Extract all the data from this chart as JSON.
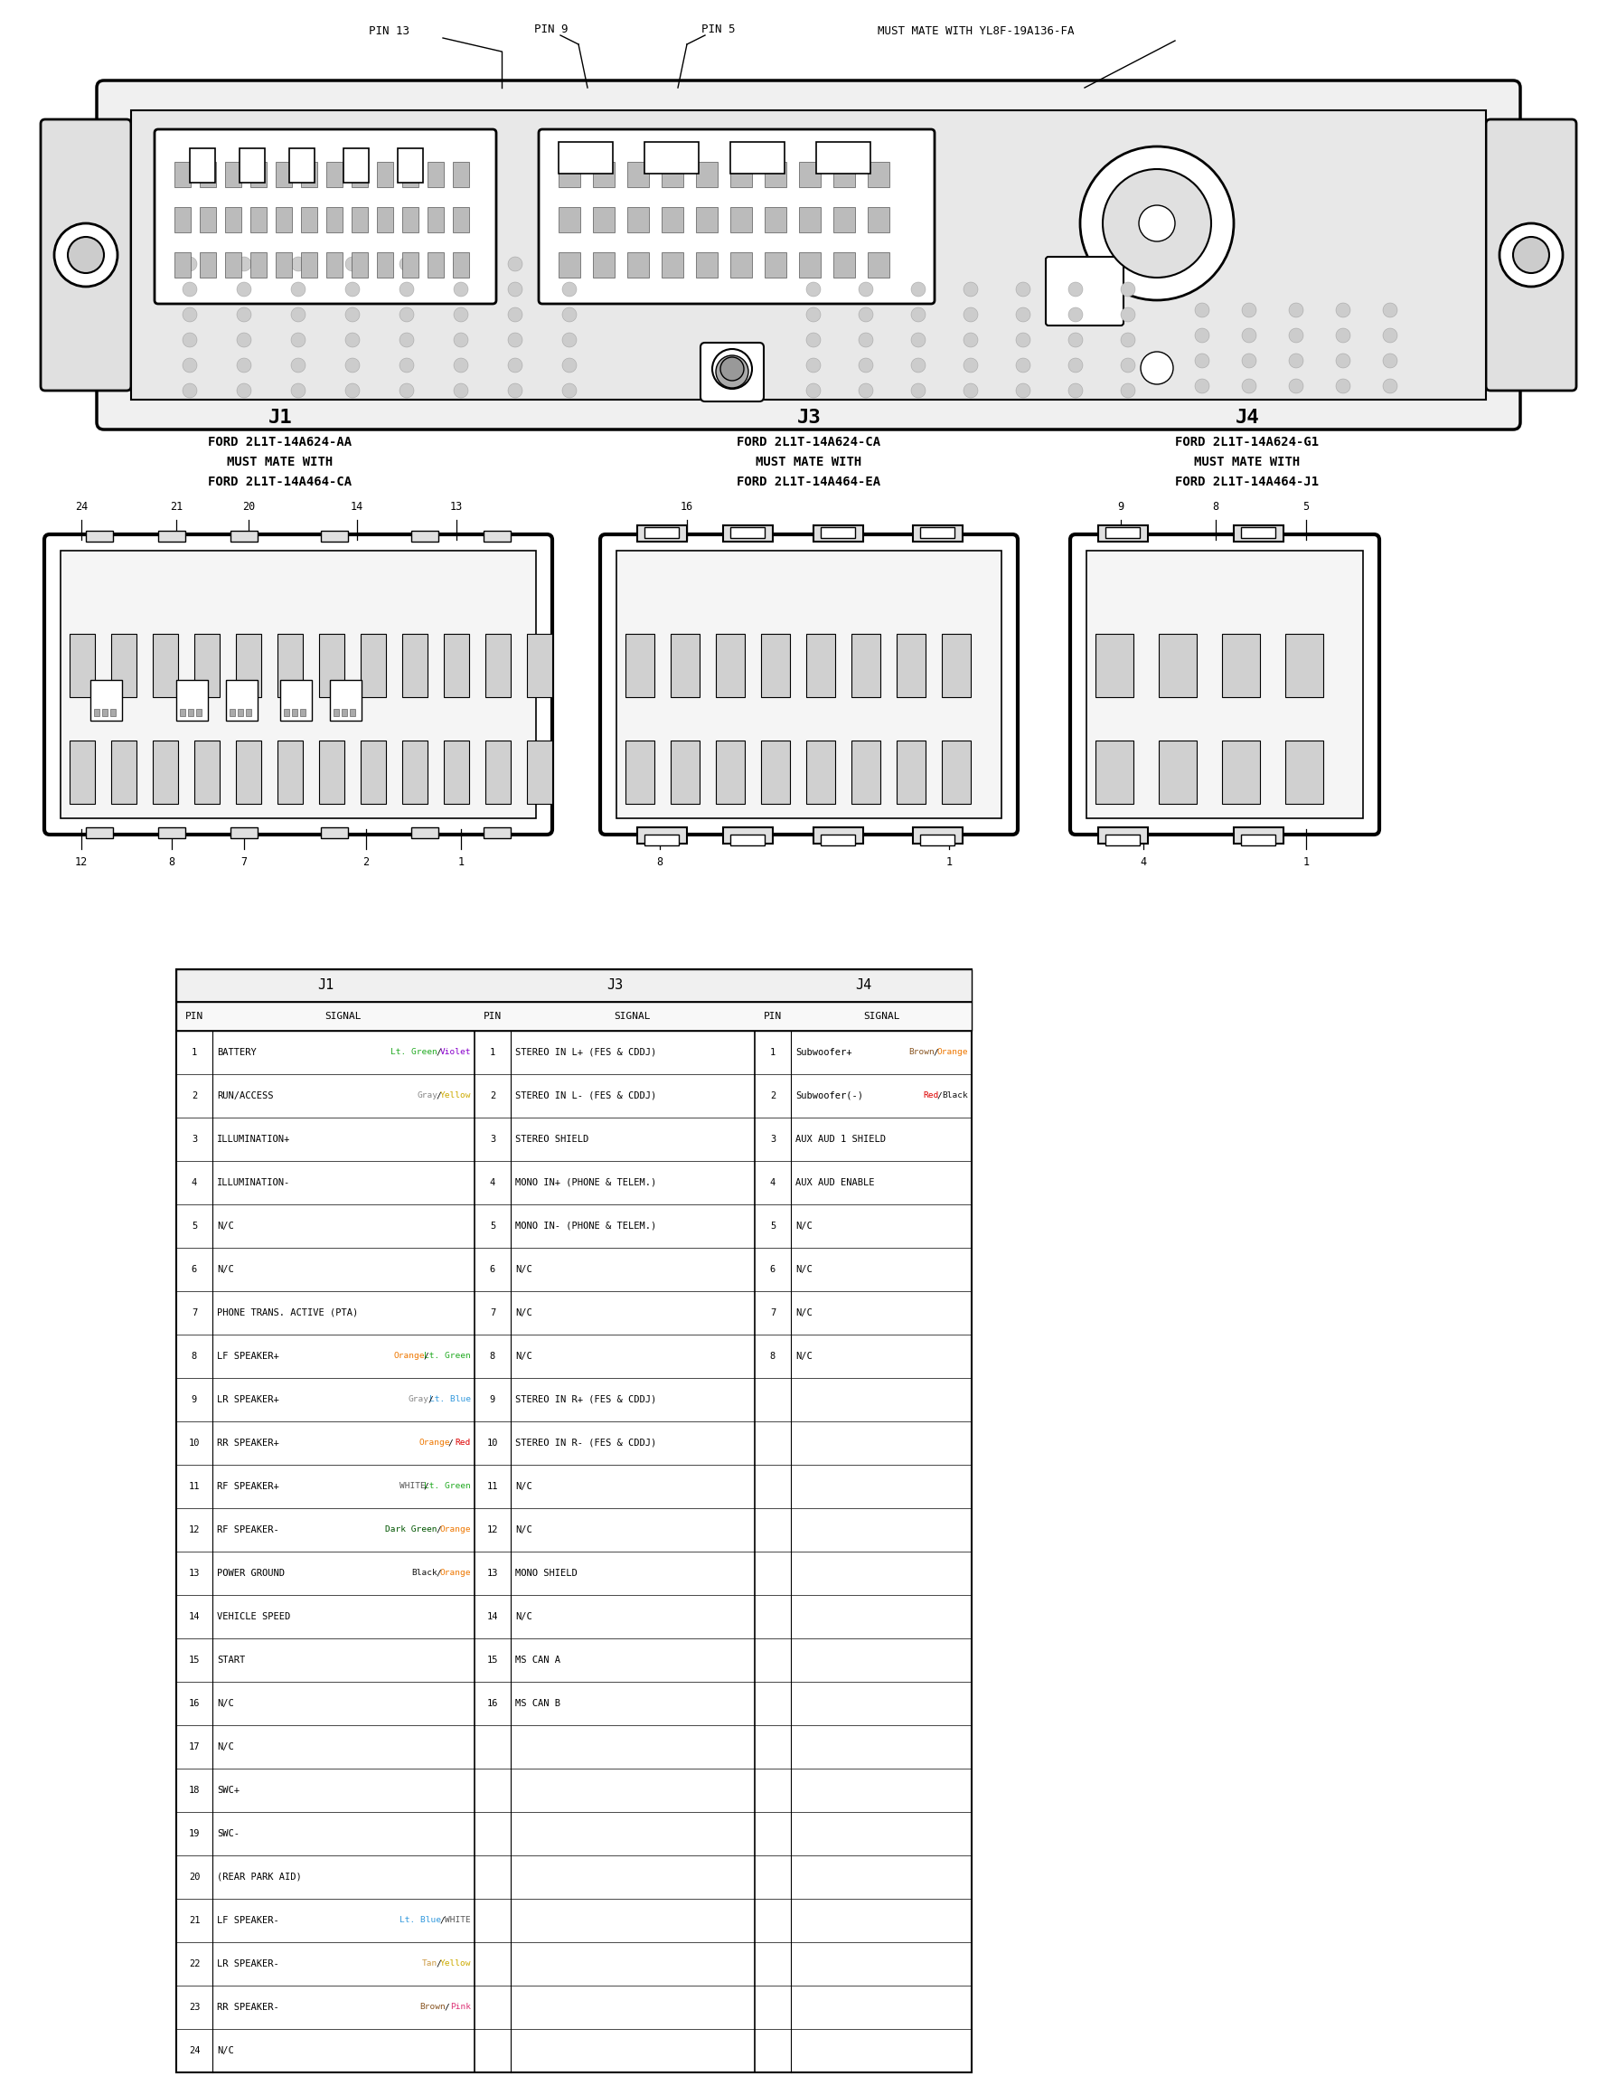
{
  "bg": "#ffffff",
  "j1_table": [
    [
      "1",
      "BATTERY",
      "Lt.Green",
      "Violet"
    ],
    [
      "2",
      "RUN/ACCESS",
      "Gray",
      "Yellow"
    ],
    [
      "3",
      "ILLUMINATION+",
      "",
      ""
    ],
    [
      "4",
      "ILLUMINATION-",
      "",
      ""
    ],
    [
      "5",
      "N/C",
      "",
      ""
    ],
    [
      "6",
      "N/C",
      "",
      ""
    ],
    [
      "7",
      "PHONE TRANS. ACTIVE (PTA)",
      "",
      ""
    ],
    [
      "8",
      "LF SPEAKER+",
      "Orange",
      "Lt.Green"
    ],
    [
      "9",
      "LR SPEAKER+",
      "Gray",
      "Lt.Blue"
    ],
    [
      "10",
      "RR SPEAKER+",
      "Orange",
      "Red"
    ],
    [
      "11",
      "RF SPEAKER+",
      "WHITE",
      "Lt.Green"
    ],
    [
      "12",
      "RF SPEAKER-",
      "DarkGreen",
      "Orange"
    ],
    [
      "13",
      "POWER GROUND",
      "Black",
      "Orange"
    ],
    [
      "14",
      "VEHICLE SPEED",
      "",
      ""
    ],
    [
      "15",
      "START",
      "",
      ""
    ],
    [
      "16",
      "N/C",
      "",
      ""
    ],
    [
      "17",
      "N/C",
      "",
      ""
    ],
    [
      "18",
      "SWC+",
      "",
      ""
    ],
    [
      "19",
      "SWC-",
      "",
      ""
    ],
    [
      "20",
      "(REAR PARK AID)",
      "",
      ""
    ],
    [
      "21",
      "LF SPEAKER-",
      "Lt.Blue",
      "WHITE"
    ],
    [
      "22",
      "LR SPEAKER-",
      "Tan",
      "Yellow"
    ],
    [
      "23",
      "RR SPEAKER-",
      "Brown",
      "Pink"
    ],
    [
      "24",
      "N/C",
      "",
      ""
    ]
  ],
  "j3_table": [
    [
      "1",
      "STEREO IN L+ (FES & CDDJ)",
      "",
      ""
    ],
    [
      "2",
      "STEREO IN L- (FES & CDDJ)",
      "",
      ""
    ],
    [
      "3",
      "STEREO SHIELD",
      "",
      ""
    ],
    [
      "4",
      "MONO IN+ (PHONE & TELEM.)",
      "",
      ""
    ],
    [
      "5",
      "MONO IN- (PHONE & TELEM.)",
      "",
      ""
    ],
    [
      "6",
      "N/C",
      "",
      ""
    ],
    [
      "7",
      "N/C",
      "",
      ""
    ],
    [
      "8",
      "N/C",
      "",
      ""
    ],
    [
      "9",
      "STEREO IN R+ (FES & CDDJ)",
      "",
      ""
    ],
    [
      "10",
      "STEREO IN R- (FES & CDDJ)",
      "",
      ""
    ],
    [
      "11",
      "N/C",
      "",
      ""
    ],
    [
      "12",
      "N/C",
      "",
      ""
    ],
    [
      "13",
      "MONO SHIELD",
      "",
      ""
    ],
    [
      "14",
      "N/C",
      "",
      ""
    ],
    [
      "15",
      "MS CAN A",
      "",
      ""
    ],
    [
      "16",
      "MS CAN B",
      "",
      ""
    ]
  ],
  "j4_table": [
    [
      "1",
      "Subwoofer+",
      "Brown",
      "Orange"
    ],
    [
      "2",
      "Subwoofer(-)",
      "Red",
      "Black"
    ],
    [
      "3",
      "AUX AUD 1 SHIELD",
      "",
      ""
    ],
    [
      "4",
      "AUX AUD ENABLE",
      "",
      ""
    ],
    [
      "5",
      "N/C",
      "",
      ""
    ],
    [
      "6",
      "N/C",
      "",
      ""
    ],
    [
      "7",
      "N/C",
      "",
      ""
    ],
    [
      "8",
      "N/C",
      "",
      ""
    ]
  ],
  "wire_colors": {
    "Lt.Green": "#22aa22",
    "Violet": "#8800cc",
    "Gray": "#888888",
    "Yellow": "#ccaa00",
    "Orange": "#ee7700",
    "Lt.Blue": "#3399dd",
    "Red": "#dd0000",
    "WHITE": "#555555",
    "DarkGreen": "#005500",
    "Black": "#111111",
    "Tan": "#cc9944",
    "Brown": "#885522",
    "Pink": "#dd3377"
  }
}
